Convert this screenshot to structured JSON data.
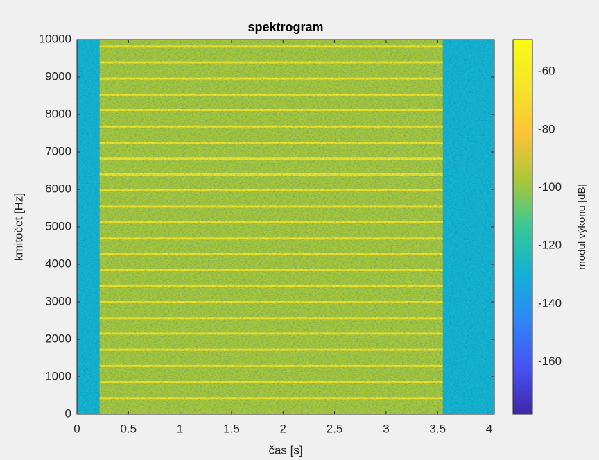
{
  "chart_data": {
    "type": "spectrogram",
    "title": "spektrogram",
    "xlabel": "čas [s]",
    "ylabel": "kmitočet [Hz]",
    "xlim": [
      0,
      4.05
    ],
    "ylim": [
      0,
      10000
    ],
    "xticks": [
      0,
      0.5,
      1,
      1.5,
      2,
      2.5,
      3,
      3.5,
      4
    ],
    "yticks": [
      0,
      1000,
      2000,
      3000,
      4000,
      5000,
      6000,
      7000,
      8000,
      9000,
      10000
    ],
    "colormap": "parula",
    "colorbar": {
      "label": "modul výkonu [dB]",
      "lim": [
        -178,
        -49
      ],
      "ticks": [
        -160,
        -140,
        -120,
        -100,
        -80,
        -60
      ]
    },
    "background_level": -128,
    "tone": {
      "start": 0.22,
      "end": 3.55,
      "level": -98
    },
    "harmonics": {
      "level": -66,
      "start": 0.22,
      "end": 3.55,
      "frequencies": [
        430,
        860,
        1290,
        1720,
        2150,
        2560,
        2990,
        3420,
        3850,
        4280,
        4690,
        5120,
        5540,
        5980,
        6400,
        6820,
        7250,
        7680,
        8120,
        8530,
        8960,
        9390,
        9820
      ]
    }
  }
}
